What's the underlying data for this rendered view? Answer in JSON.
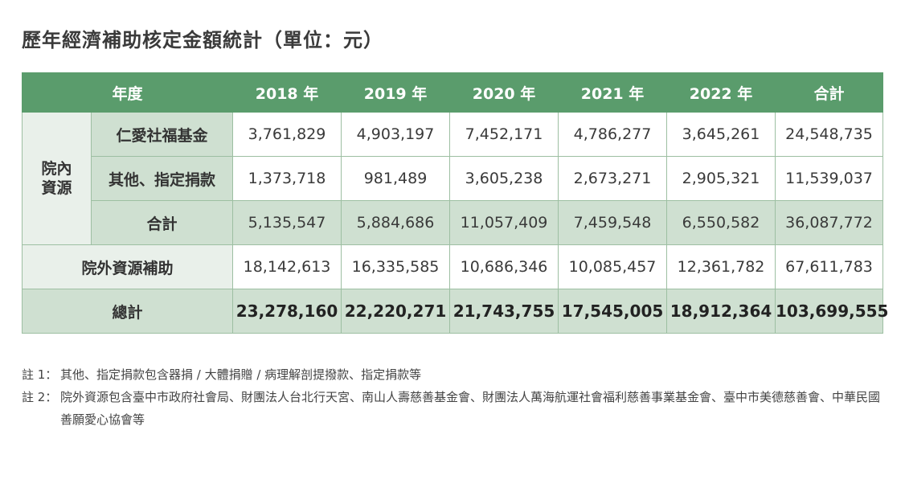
{
  "title": "歷年經濟補助核定金額統計（單位：元）",
  "table": {
    "header": [
      "年度",
      "2018 年",
      "2019 年",
      "2020 年",
      "2021 年",
      "2022 年",
      "合計"
    ],
    "group_label_line1": "院內",
    "group_label_line2": "資源",
    "rows": [
      {
        "label": "仁愛社福基金",
        "values": [
          "3,761,829",
          "4,903,197",
          "7,452,171",
          "4,786,277",
          "3,645,261",
          "24,548,735"
        ]
      },
      {
        "label": "其他、指定捐款",
        "values": [
          "1,373,718",
          "981,489",
          "3,605,238",
          "2,673,271",
          "2,905,321",
          "11,539,037"
        ]
      },
      {
        "label": "合計",
        "values": [
          "5,135,547",
          "5,884,686",
          "11,057,409",
          "7,459,548",
          "6,550,582",
          "36,087,772"
        ]
      },
      {
        "label": "院外資源補助",
        "values": [
          "18,142,613",
          "16,335,585",
          "10,686,346",
          "10,085,457",
          "12,361,782",
          "67,611,783"
        ]
      },
      {
        "label": "總計",
        "values": [
          "23,278,160",
          "22,220,271",
          "21,743,755",
          "17,545,005",
          "18,912,364",
          "103,699,555"
        ]
      }
    ]
  },
  "notes": [
    {
      "mark": "註 1：",
      "text": "其他、指定捐款包含器捐 / 大體捐贈 / 病理解剖提撥款、指定捐款等"
    },
    {
      "mark": "註 2：",
      "text": "院外資源包含臺中市政府社會局、財團法人台北行天宮、南山人壽慈善基金會、財團法人萬海航運社會福利慈善事業基金會、臺中市美德慈善會、中華民國善願愛心協會等"
    }
  ]
}
